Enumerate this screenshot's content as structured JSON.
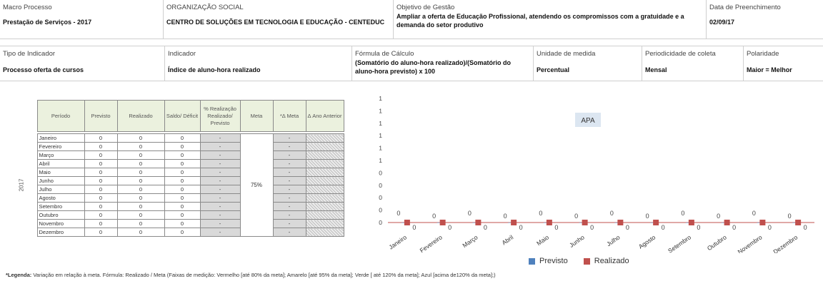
{
  "header": {
    "row1": [
      {
        "label": "Macro Processo",
        "value": "Prestação de Serviços - 2017"
      },
      {
        "label": "ORGANIZAÇÃO SOCIAL",
        "value": "CENTRO DE SOLUÇÕES EM TECNOLOGIA E EDUCAÇÃO - CENTEDUC"
      },
      {
        "label": "Objetivo de Gestão",
        "value": "Ampliar a oferta de Educação Profissional, atendendo os compromissos com a gratuidade e a demanda do setor produtivo"
      },
      {
        "label": "Data de Preenchimento",
        "value": "02/09/17"
      }
    ],
    "row2": [
      {
        "label": "Tipo de Indicador",
        "value": "Processo oferta de cursos"
      },
      {
        "label": "Indicador",
        "value": "Índice de aluno-hora realizado"
      },
      {
        "label": "Fórmula  de Cálculo",
        "value": "(Somatório do aluno-hora realizado)/(Somatório do aluno-hora previsto) x 100"
      },
      {
        "label": "Unidade de medida",
        "value": "Percentual"
      },
      {
        "label": "Periodicidade de coleta",
        "value": "Mensal"
      },
      {
        "label": "Polaridade",
        "value": "Maior = Melhor"
      }
    ]
  },
  "table": {
    "columns": [
      "Período",
      "Previsto",
      "Realizado",
      "Saldo/ Déficit",
      "% Realização Realizado/ Previsto",
      "Meta",
      "*Δ Meta",
      "Δ Ano Anterior"
    ],
    "year": "2017",
    "meta": "75%",
    "rows": [
      {
        "mes": "Janeiro",
        "previsto": "0",
        "realizado": "0",
        "saldo": "0",
        "pct": "-",
        "dmeta": "-"
      },
      {
        "mes": "Fevereiro",
        "previsto": "0",
        "realizado": "0",
        "saldo": "0",
        "pct": "-",
        "dmeta": "-"
      },
      {
        "mes": "Março",
        "previsto": "0",
        "realizado": "0",
        "saldo": "0",
        "pct": "-",
        "dmeta": "-"
      },
      {
        "mes": "Abril",
        "previsto": "0",
        "realizado": "0",
        "saldo": "0",
        "pct": "-",
        "dmeta": "-"
      },
      {
        "mes": "Maio",
        "previsto": "0",
        "realizado": "0",
        "saldo": "0",
        "pct": "-",
        "dmeta": "-"
      },
      {
        "mes": "Junho",
        "previsto": "0",
        "realizado": "0",
        "saldo": "0",
        "pct": "-",
        "dmeta": "-"
      },
      {
        "mes": "Julho",
        "previsto": "0",
        "realizado": "0",
        "saldo": "0",
        "pct": "-",
        "dmeta": "-"
      },
      {
        "mes": "Agosto",
        "previsto": "0",
        "realizado": "0",
        "saldo": "0",
        "pct": "-",
        "dmeta": "-"
      },
      {
        "mes": "Setembro",
        "previsto": "0",
        "realizado": "0",
        "saldo": "0",
        "pct": "-",
        "dmeta": "-"
      },
      {
        "mes": "Outubro",
        "previsto": "0",
        "realizado": "0",
        "saldo": "0",
        "pct": "-",
        "dmeta": "-"
      },
      {
        "mes": "Novembro",
        "previsto": "0",
        "realizado": "0",
        "saldo": "0",
        "pct": "-",
        "dmeta": "-"
      },
      {
        "mes": "Dezembro",
        "previsto": "0",
        "realizado": "0",
        "saldo": "0",
        "pct": "-",
        "dmeta": "-"
      }
    ]
  },
  "legend_note": {
    "bold": "*Legenda:",
    "text": " Variação em relação à meta. Fórmula: Realizado / Meta (Faixas de medição: Vermelho [até 80% da meta]; Amarelo [até 95% da meta]; Verde [ até 120% da meta]; Azul [acima de120% da meta];)"
  },
  "chart_data": {
    "type": "bar",
    "title": "APA",
    "categories": [
      "Janeiro",
      "Fevereiro",
      "Março",
      "Abril",
      "Maio",
      "Junho",
      "Julho",
      "Agosto",
      "Setembro",
      "Outubro",
      "Novembro",
      "Dezembro"
    ],
    "series": [
      {
        "name": "Previsto",
        "values": [
          0,
          0,
          0,
          0,
          0,
          0,
          0,
          0,
          0,
          0,
          0,
          0
        ],
        "color": "#4f81bd"
      },
      {
        "name": "Realizado",
        "values": [
          0,
          0,
          0,
          0,
          0,
          0,
          0,
          0,
          0,
          0,
          0,
          0
        ],
        "color": "#c0504d"
      }
    ],
    "yticks": [
      "0",
      "0",
      "0",
      "0",
      "0",
      "1",
      "1",
      "1",
      "1",
      "1",
      "1"
    ],
    "legend_position": "bottom",
    "grid": false,
    "title_bg": "#dce6f1"
  }
}
